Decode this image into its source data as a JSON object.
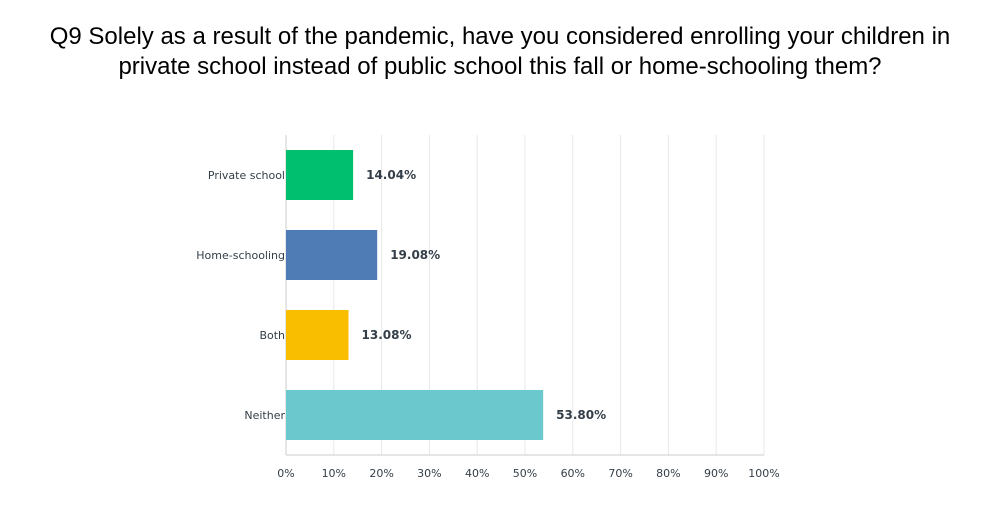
{
  "chart_data": {
    "type": "bar",
    "orientation": "horizontal",
    "title_lines": [
      "Q9 Solely as a result of the pandemic, have you considered enrolling your children in",
      "private school instead of public school this fall or home-schooling them?"
    ],
    "categories": [
      "Private school",
      "Home-schooling",
      "Both",
      "Neither"
    ],
    "values": [
      14.04,
      19.08,
      13.08,
      53.8
    ],
    "value_labels": [
      "14.04%",
      "19.08%",
      "13.08%",
      "53.80%"
    ],
    "colors": [
      "#00bf6f",
      "#507cb6",
      "#f9be00",
      "#6bc8cd"
    ],
    "xlim": [
      0,
      100
    ],
    "ticks": [
      0,
      10,
      20,
      30,
      40,
      50,
      60,
      70,
      80,
      90,
      100
    ],
    "tick_labels": [
      "0%",
      "10%",
      "20%",
      "30%",
      "40%",
      "50%",
      "60%",
      "70%",
      "80%",
      "90%",
      "100%"
    ],
    "grid": true,
    "xlabel": "",
    "ylabel": ""
  }
}
